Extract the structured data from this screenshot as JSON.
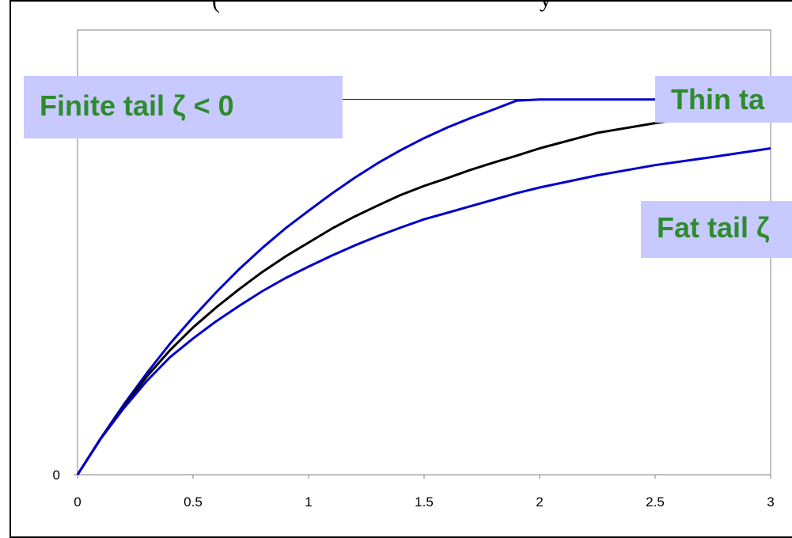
{
  "chart_data": {
    "type": "line",
    "title": "",
    "xlabel": "",
    "ylabel": "",
    "xlim": [
      0,
      3
    ],
    "ylim": [
      0,
      1.09
    ],
    "grid": false,
    "x_ticks": [
      "0",
      "0.5",
      "1",
      "1.5",
      "2",
      "2.5",
      "3"
    ],
    "y_ticks": [
      "0"
    ],
    "reference_line_y": 0.92,
    "series": [
      {
        "color": "#0000cc",
        "points": [
          [
            0,
            0
          ],
          [
            0.1,
            0.089
          ],
          [
            0.2,
            0.172
          ],
          [
            0.3,
            0.249
          ],
          [
            0.4,
            0.321
          ],
          [
            0.5,
            0.386
          ],
          [
            0.6,
            0.447
          ],
          [
            0.7,
            0.504
          ],
          [
            0.8,
            0.556
          ],
          [
            0.9,
            0.604
          ],
          [
            1.0,
            0.647
          ],
          [
            1.1,
            0.689
          ],
          [
            1.2,
            0.728
          ],
          [
            1.3,
            0.764
          ],
          [
            1.4,
            0.796
          ],
          [
            1.5,
            0.825
          ],
          [
            1.6,
            0.851
          ],
          [
            1.7,
            0.874
          ],
          [
            1.8,
            0.895
          ],
          [
            1.9,
            0.917
          ],
          [
            2.0,
            0.92
          ],
          [
            2.5,
            0.92
          ],
          [
            3.0,
            0.92
          ]
        ]
      },
      {
        "color": "#000000",
        "points": [
          [
            0,
            0
          ],
          [
            0.1,
            0.088
          ],
          [
            0.2,
            0.167
          ],
          [
            0.3,
            0.241
          ],
          [
            0.4,
            0.305
          ],
          [
            0.5,
            0.361
          ],
          [
            0.6,
            0.41
          ],
          [
            0.7,
            0.455
          ],
          [
            0.8,
            0.497
          ],
          [
            0.9,
            0.535
          ],
          [
            1.0,
            0.569
          ],
          [
            1.1,
            0.603
          ],
          [
            1.2,
            0.633
          ],
          [
            1.3,
            0.66
          ],
          [
            1.4,
            0.686
          ],
          [
            1.5,
            0.708
          ],
          [
            1.6,
            0.727
          ],
          [
            1.7,
            0.747
          ],
          [
            1.8,
            0.765
          ],
          [
            1.9,
            0.782
          ],
          [
            2.0,
            0.8
          ],
          [
            2.25,
            0.838
          ],
          [
            2.5,
            0.862
          ],
          [
            2.75,
            0.884
          ],
          [
            3.0,
            0.9
          ]
        ]
      },
      {
        "color": "#0000cc",
        "points": [
          [
            0,
            0
          ],
          [
            0.1,
            0.088
          ],
          [
            0.2,
            0.163
          ],
          [
            0.3,
            0.23
          ],
          [
            0.4,
            0.288
          ],
          [
            0.5,
            0.334
          ],
          [
            0.6,
            0.376
          ],
          [
            0.7,
            0.414
          ],
          [
            0.8,
            0.45
          ],
          [
            0.9,
            0.482
          ],
          [
            1.0,
            0.51
          ],
          [
            1.1,
            0.537
          ],
          [
            1.2,
            0.562
          ],
          [
            1.3,
            0.585
          ],
          [
            1.4,
            0.606
          ],
          [
            1.5,
            0.626
          ],
          [
            1.6,
            0.642
          ],
          [
            1.7,
            0.658
          ],
          [
            1.8,
            0.674
          ],
          [
            1.9,
            0.69
          ],
          [
            2.0,
            0.704
          ],
          [
            2.25,
            0.734
          ],
          [
            2.5,
            0.759
          ],
          [
            2.75,
            0.779
          ],
          [
            3.0,
            0.8
          ]
        ]
      }
    ],
    "labels": {
      "finite": "Finite tail ζ < 0",
      "thin": "Thin ta",
      "fat": "Fat tail ζ"
    }
  }
}
